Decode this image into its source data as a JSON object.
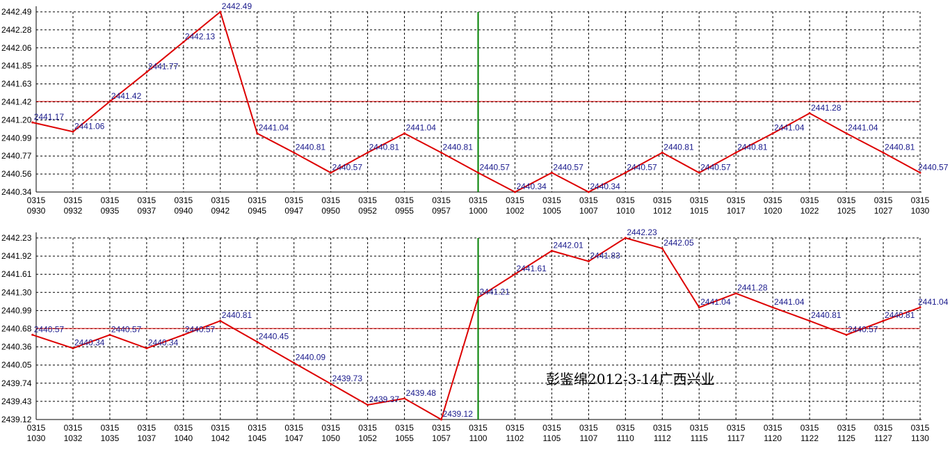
{
  "watermark": "彭鉴绵2012-3-14广西兴业",
  "colors": {
    "line": "#dd0000",
    "ref_line": "#dd0000",
    "marker": "#008000",
    "grid": "#000000",
    "label": "#1a1a8c"
  },
  "chart_data": [
    {
      "type": "line",
      "title": "",
      "grid": true,
      "y_ticks": [
        "2442.49",
        "2442.28",
        "2442.06",
        "2441.85",
        "2441.63",
        "2441.42",
        "2441.20",
        "2440.99",
        "2440.77",
        "2440.56",
        "2440.34"
      ],
      "ylim": [
        2440.34,
        2442.49
      ],
      "ref_y": 2441.42,
      "vline_after": "1000",
      "x_ticks": [
        [
          "0315",
          "0930"
        ],
        [
          "0315",
          "0932"
        ],
        [
          "0315",
          "0935"
        ],
        [
          "0315",
          "0937"
        ],
        [
          "0315",
          "0940"
        ],
        [
          "0315",
          "0942"
        ],
        [
          "0315",
          "0945"
        ],
        [
          "0315",
          "0947"
        ],
        [
          "0315",
          "0950"
        ],
        [
          "0315",
          "0952"
        ],
        [
          "0315",
          "0955"
        ],
        [
          "0315",
          "0957"
        ],
        [
          "0315",
          "1000"
        ],
        [
          "0315",
          "1002"
        ],
        [
          "0315",
          "1005"
        ],
        [
          "0315",
          "1007"
        ],
        [
          "0315",
          "1010"
        ],
        [
          "0315",
          "1012"
        ],
        [
          "0315",
          "1015"
        ],
        [
          "0315",
          "1017"
        ],
        [
          "0315",
          "1020"
        ],
        [
          "0315",
          "1022"
        ],
        [
          "0315",
          "1025"
        ],
        [
          "0315",
          "1027"
        ],
        [
          "0315",
          "1030"
        ]
      ],
      "points": [
        {
          "x": -0.1,
          "y": 2441.17,
          "label": "2441.17"
        },
        {
          "x": 1,
          "y": 2441.06,
          "label": "2441.06"
        },
        {
          "x": 2,
          "y": 2441.42,
          "label": "2441.42"
        },
        {
          "x": 3,
          "y": 2441.77,
          "label": "2441.77"
        },
        {
          "x": 4,
          "y": 2442.13,
          "label": "2442.13"
        },
        {
          "x": 5,
          "y": 2442.49,
          "label": "2442.49"
        },
        {
          "x": 6,
          "y": 2441.04,
          "label": "2441.04"
        },
        {
          "x": 7,
          "y": 2440.81,
          "label": "2440.81"
        },
        {
          "x": 8,
          "y": 2440.57,
          "label": "2440.57"
        },
        {
          "x": 9,
          "y": 2440.81,
          "label": "2440.81"
        },
        {
          "x": 10,
          "y": 2441.04,
          "label": "2441.04"
        },
        {
          "x": 11,
          "y": 2440.81,
          "label": "2440.81"
        },
        {
          "x": 12,
          "y": 2440.57,
          "label": "2440.57"
        },
        {
          "x": 13,
          "y": 2440.34,
          "label": "2440.34"
        },
        {
          "x": 14,
          "y": 2440.57,
          "label": "2440.57"
        },
        {
          "x": 15,
          "y": 2440.34,
          "label": "2440.34"
        },
        {
          "x": 16,
          "y": 2440.57,
          "label": "2440.57"
        },
        {
          "x": 17,
          "y": 2440.81,
          "label": "2440.81"
        },
        {
          "x": 18,
          "y": 2440.57,
          "label": "2440.57"
        },
        {
          "x": 19,
          "y": 2440.81,
          "label": "2440.81"
        },
        {
          "x": 20,
          "y": 2441.04,
          "label": "2441.04"
        },
        {
          "x": 21,
          "y": 2441.28,
          "label": "2441.28"
        },
        {
          "x": 22,
          "y": 2441.04,
          "label": "2441.04"
        },
        {
          "x": 23,
          "y": 2440.81,
          "label": "2440.81"
        },
        {
          "x": 24,
          "y": 2440.57,
          "label": "2440.57"
        }
      ]
    },
    {
      "type": "line",
      "title": "",
      "grid": true,
      "y_ticks": [
        "2442.23",
        "2441.92",
        "2441.61",
        "2441.30",
        "2440.99",
        "2440.68",
        "2440.36",
        "2440.05",
        "2439.74",
        "2439.43",
        "2439.12"
      ],
      "ylim": [
        2439.12,
        2442.23
      ],
      "ref_y": 2440.68,
      "vline_after": "1100",
      "x_ticks": [
        [
          "0315",
          "1030"
        ],
        [
          "0315",
          "1032"
        ],
        [
          "0315",
          "1035"
        ],
        [
          "0315",
          "1037"
        ],
        [
          "0315",
          "1040"
        ],
        [
          "0315",
          "1042"
        ],
        [
          "0315",
          "1045"
        ],
        [
          "0315",
          "1047"
        ],
        [
          "0315",
          "1050"
        ],
        [
          "0315",
          "1052"
        ],
        [
          "0315",
          "1055"
        ],
        [
          "0315",
          "1057"
        ],
        [
          "0315",
          "1100"
        ],
        [
          "0315",
          "1102"
        ],
        [
          "0315",
          "1105"
        ],
        [
          "0315",
          "1107"
        ],
        [
          "0315",
          "1110"
        ],
        [
          "0315",
          "1112"
        ],
        [
          "0315",
          "1115"
        ],
        [
          "0315",
          "1117"
        ],
        [
          "0315",
          "1120"
        ],
        [
          "0315",
          "1122"
        ],
        [
          "0315",
          "1125"
        ],
        [
          "0315",
          "1127"
        ],
        [
          "0315",
          "1130"
        ]
      ],
      "points": [
        {
          "x": -0.1,
          "y": 2440.57,
          "label": "2440.57"
        },
        {
          "x": 1,
          "y": 2440.34,
          "label": "2440.34"
        },
        {
          "x": 2,
          "y": 2440.57,
          "label": "2440.57"
        },
        {
          "x": 3,
          "y": 2440.34,
          "label": "2440.34"
        },
        {
          "x": 4,
          "y": 2440.57,
          "label": "2440.57"
        },
        {
          "x": 5,
          "y": 2440.81,
          "label": "2440.81"
        },
        {
          "x": 6,
          "y": 2440.45,
          "label": "2440.45"
        },
        {
          "x": 7,
          "y": 2440.09,
          "label": "2440.09"
        },
        {
          "x": 8,
          "y": 2439.73,
          "label": "2439.73"
        },
        {
          "x": 9,
          "y": 2439.37,
          "label": "2439.37"
        },
        {
          "x": 10,
          "y": 2439.48,
          "label": "2439.48"
        },
        {
          "x": 11,
          "y": 2439.12,
          "label": "2439.12"
        },
        {
          "x": 12,
          "y": 2441.21,
          "label": "2441.21"
        },
        {
          "x": 13,
          "y": 2441.61,
          "label": "2441.61"
        },
        {
          "x": 14,
          "y": 2442.01,
          "label": "2442.01"
        },
        {
          "x": 15,
          "y": 2441.83,
          "label": "2441.83"
        },
        {
          "x": 16,
          "y": 2442.23,
          "label": "2442.23"
        },
        {
          "x": 17,
          "y": 2442.05,
          "label": "2442.05"
        },
        {
          "x": 18,
          "y": 2441.04,
          "label": "2441.04"
        },
        {
          "x": 19,
          "y": 2441.28,
          "label": "2441.28"
        },
        {
          "x": 20,
          "y": 2441.04,
          "label": "2441.04"
        },
        {
          "x": 21,
          "y": 2440.81,
          "label": "2440.81"
        },
        {
          "x": 22,
          "y": 2440.57,
          "label": "2440.57"
        },
        {
          "x": 23,
          "y": 2440.81,
          "label": "2440.81"
        },
        {
          "x": 24,
          "y": 2441.04,
          "label": "2441.04"
        }
      ]
    }
  ]
}
